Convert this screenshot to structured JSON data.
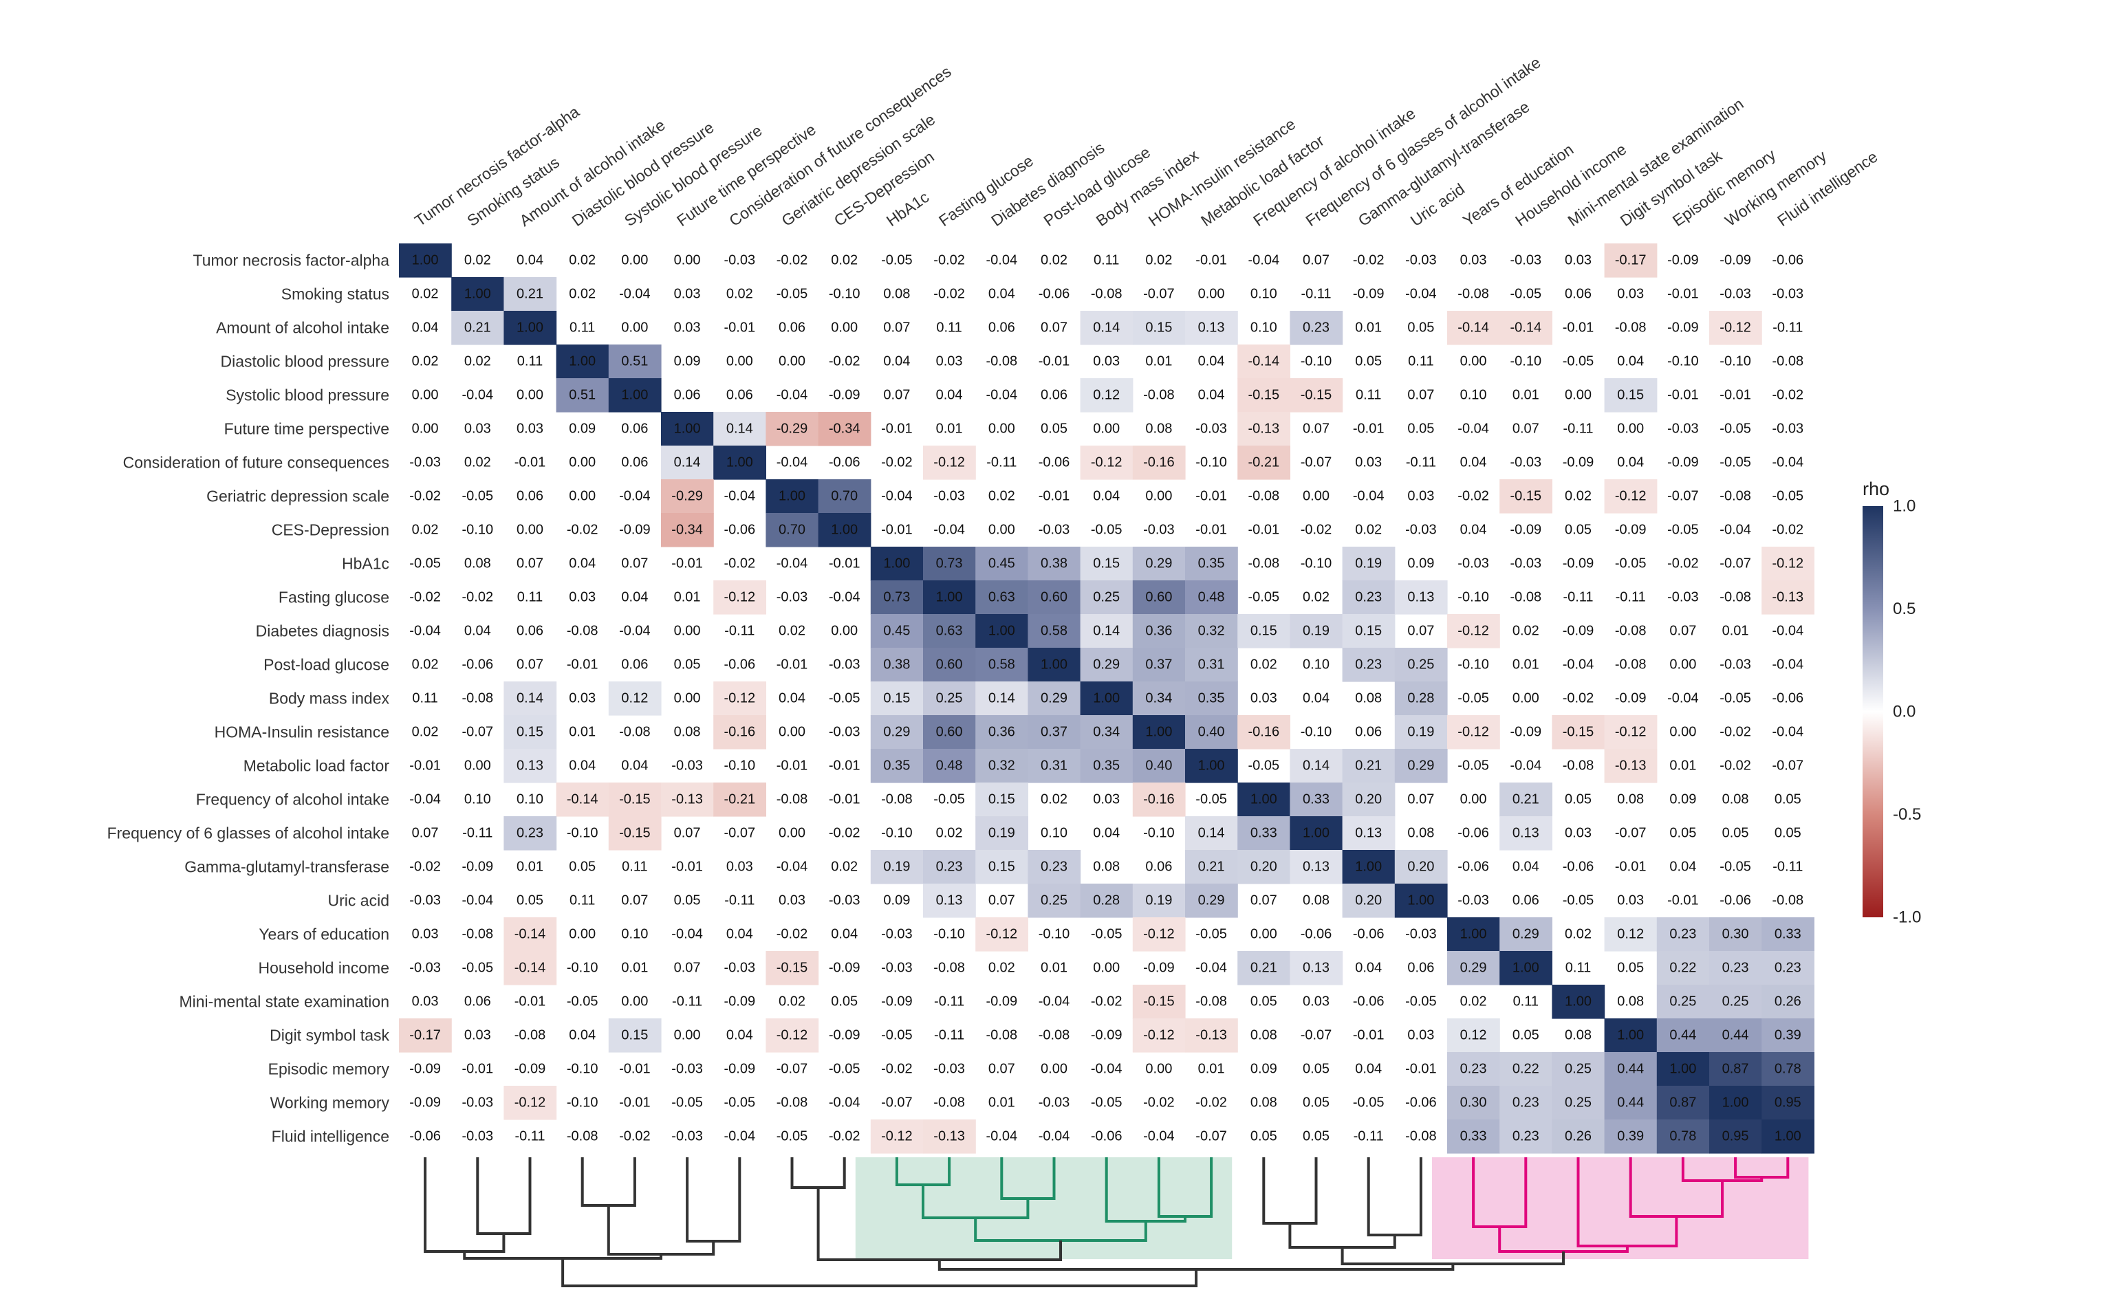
{
  "chart_data": {
    "type": "heatmap",
    "title": "",
    "variables": [
      "Tumor necrosis factor-alpha",
      "Smoking status",
      "Amount of alcohol intake",
      "Diastolic blood pressure",
      "Systolic blood pressure",
      "Future time perspective",
      "Consideration of future consequences",
      "Geriatric depression scale",
      "CES-Depression",
      "HbA1c",
      "Fasting glucose",
      "Diabetes diagnosis",
      "Post-load glucose",
      "Body mass index",
      "HOMA-Insulin resistance",
      "Metabolic load factor",
      "Frequency of alcohol intake",
      "Frequency of 6 glasses of alcohol intake",
      "Gamma-glutamyl-transferase",
      "Uric acid",
      "Years of education",
      "Household income",
      "Mini-mental state examination",
      "Digit symbol task",
      "Episodic memory",
      "Working memory",
      "Fluid intelligence"
    ],
    "matrix": [
      [
        1.0,
        0.02,
        0.04,
        0.02,
        0.0,
        0.0,
        -0.03,
        -0.02,
        0.02,
        -0.05,
        -0.02,
        -0.04,
        0.02,
        0.11,
        0.02,
        -0.01,
        -0.04,
        0.07,
        -0.02,
        -0.03,
        0.03,
        -0.03,
        0.03,
        -0.17,
        -0.09,
        -0.09,
        -0.06
      ],
      [
        0.02,
        1.0,
        0.21,
        0.02,
        -0.04,
        0.03,
        0.02,
        -0.05,
        -0.1,
        0.08,
        -0.02,
        0.04,
        -0.06,
        -0.08,
        -0.07,
        0.0,
        0.1,
        -0.11,
        -0.09,
        -0.04,
        -0.08,
        -0.05,
        0.06,
        0.03,
        -0.01,
        -0.03,
        -0.03
      ],
      [
        0.04,
        0.21,
        1.0,
        0.11,
        0.0,
        0.03,
        -0.01,
        0.06,
        0.0,
        0.07,
        0.11,
        0.06,
        0.07,
        0.14,
        0.15,
        0.13,
        0.1,
        0.23,
        0.01,
        0.05,
        -0.14,
        -0.14,
        -0.01,
        -0.08,
        -0.09,
        -0.12,
        -0.11
      ],
      [
        0.02,
        0.02,
        0.11,
        1.0,
        0.51,
        0.09,
        0.0,
        0.0,
        -0.02,
        0.04,
        0.03,
        -0.08,
        -0.01,
        0.03,
        0.01,
        0.04,
        -0.14,
        -0.1,
        0.05,
        0.11,
        0.0,
        -0.1,
        -0.05,
        0.04,
        -0.1,
        -0.1,
        -0.08
      ],
      [
        0.0,
        -0.04,
        0.0,
        0.51,
        1.0,
        0.06,
        0.06,
        -0.04,
        -0.09,
        0.07,
        0.04,
        -0.04,
        0.06,
        0.12,
        -0.08,
        0.04,
        -0.15,
        -0.15,
        0.11,
        0.07,
        0.1,
        0.01,
        0.0,
        0.15,
        -0.01,
        -0.01,
        -0.02
      ],
      [
        0.0,
        0.03,
        0.03,
        0.09,
        0.06,
        1.0,
        0.14,
        -0.29,
        -0.34,
        -0.01,
        0.01,
        0.0,
        0.05,
        0.0,
        0.08,
        -0.03,
        -0.13,
        0.07,
        -0.01,
        0.05,
        -0.04,
        0.07,
        -0.11,
        0.0,
        -0.03,
        -0.05,
        -0.03
      ],
      [
        -0.03,
        0.02,
        -0.01,
        0.0,
        0.06,
        0.14,
        1.0,
        -0.04,
        -0.06,
        -0.02,
        -0.12,
        -0.11,
        -0.06,
        -0.12,
        -0.16,
        -0.1,
        -0.21,
        -0.07,
        0.03,
        -0.11,
        0.04,
        -0.03,
        -0.09,
        0.04,
        -0.09,
        -0.05,
        -0.04
      ],
      [
        -0.02,
        -0.05,
        0.06,
        0.0,
        -0.04,
        -0.29,
        -0.04,
        1.0,
        0.7,
        -0.04,
        -0.03,
        0.02,
        -0.01,
        0.04,
        0.0,
        -0.01,
        -0.08,
        0.0,
        -0.04,
        0.03,
        -0.02,
        -0.15,
        0.02,
        -0.12,
        -0.07,
        -0.08,
        -0.05
      ],
      [
        0.02,
        -0.1,
        0.0,
        -0.02,
        -0.09,
        -0.34,
        -0.06,
        0.7,
        1.0,
        -0.01,
        -0.04,
        0.0,
        -0.03,
        -0.05,
        -0.03,
        -0.01,
        -0.01,
        -0.02,
        0.02,
        -0.03,
        0.04,
        -0.09,
        0.05,
        -0.09,
        -0.05,
        -0.04,
        -0.02
      ],
      [
        -0.05,
        0.08,
        0.07,
        0.04,
        0.07,
        -0.01,
        -0.02,
        -0.04,
        -0.01,
        1.0,
        0.73,
        0.45,
        0.38,
        0.15,
        0.29,
        0.35,
        -0.08,
        -0.1,
        0.19,
        0.09,
        -0.03,
        -0.03,
        -0.09,
        -0.05,
        -0.02,
        -0.07,
        -0.12
      ],
      [
        -0.02,
        -0.02,
        0.11,
        0.03,
        0.04,
        0.01,
        -0.12,
        -0.03,
        -0.04,
        0.73,
        1.0,
        0.63,
        0.6,
        0.25,
        0.6,
        0.48,
        -0.05,
        0.02,
        0.23,
        0.13,
        -0.1,
        -0.08,
        -0.11,
        -0.11,
        -0.03,
        -0.08,
        -0.13
      ],
      [
        -0.04,
        0.04,
        0.06,
        -0.08,
        -0.04,
        0.0,
        -0.11,
        0.02,
        0.0,
        0.45,
        0.63,
        1.0,
        0.58,
        0.14,
        0.36,
        0.32,
        0.15,
        0.19,
        0.15,
        0.07,
        -0.12,
        0.02,
        -0.09,
        -0.08,
        0.07,
        0.01,
        -0.04
      ],
      [
        0.02,
        -0.06,
        0.07,
        -0.01,
        0.06,
        0.05,
        -0.06,
        -0.01,
        -0.03,
        0.38,
        0.6,
        0.58,
        1.0,
        0.29,
        0.37,
        0.31,
        0.02,
        0.1,
        0.23,
        0.25,
        -0.1,
        0.01,
        -0.04,
        -0.08,
        0.0,
        -0.03,
        -0.04
      ],
      [
        0.11,
        -0.08,
        0.14,
        0.03,
        0.12,
        0.0,
        -0.12,
        0.04,
        -0.05,
        0.15,
        0.25,
        0.14,
        0.29,
        1.0,
        0.34,
        0.35,
        0.03,
        0.04,
        0.08,
        0.28,
        -0.05,
        0.0,
        -0.02,
        -0.09,
        -0.04,
        -0.05,
        -0.06
      ],
      [
        0.02,
        -0.07,
        0.15,
        0.01,
        -0.08,
        0.08,
        -0.16,
        0.0,
        -0.03,
        0.29,
        0.6,
        0.36,
        0.37,
        0.34,
        1.0,
        0.4,
        -0.16,
        -0.1,
        0.06,
        0.19,
        -0.12,
        -0.09,
        -0.15,
        -0.12,
        0.0,
        -0.02,
        -0.04
      ],
      [
        -0.01,
        0.0,
        0.13,
        0.04,
        0.04,
        -0.03,
        -0.1,
        -0.01,
        -0.01,
        0.35,
        0.48,
        0.32,
        0.31,
        0.35,
        0.4,
        1.0,
        -0.05,
        0.14,
        0.21,
        0.29,
        -0.05,
        -0.04,
        -0.08,
        -0.13,
        0.01,
        -0.02,
        -0.07
      ],
      [
        -0.04,
        0.1,
        0.1,
        -0.14,
        -0.15,
        -0.13,
        -0.21,
        -0.08,
        -0.01,
        -0.08,
        -0.05,
        0.15,
        0.02,
        0.03,
        -0.16,
        -0.05,
        1.0,
        0.33,
        0.2,
        0.07,
        0.0,
        0.21,
        0.05,
        0.08,
        0.09,
        0.08,
        0.05
      ],
      [
        0.07,
        -0.11,
        0.23,
        -0.1,
        -0.15,
        0.07,
        -0.07,
        0.0,
        -0.02,
        -0.1,
        0.02,
        0.19,
        0.1,
        0.04,
        -0.1,
        0.14,
        0.33,
        1.0,
        0.13,
        0.08,
        -0.06,
        0.13,
        0.03,
        -0.07,
        0.05,
        0.05,
        0.05
      ],
      [
        -0.02,
        -0.09,
        0.01,
        0.05,
        0.11,
        -0.01,
        0.03,
        -0.04,
        0.02,
        0.19,
        0.23,
        0.15,
        0.23,
        0.08,
        0.06,
        0.21,
        0.2,
        0.13,
        1.0,
        0.2,
        -0.06,
        0.04,
        -0.06,
        -0.01,
        0.04,
        -0.05,
        -0.11
      ],
      [
        -0.03,
        -0.04,
        0.05,
        0.11,
        0.07,
        0.05,
        -0.11,
        0.03,
        -0.03,
        0.09,
        0.13,
        0.07,
        0.25,
        0.28,
        0.19,
        0.29,
        0.07,
        0.08,
        0.2,
        1.0,
        -0.03,
        0.06,
        -0.05,
        0.03,
        -0.01,
        -0.06,
        -0.08
      ],
      [
        0.03,
        -0.08,
        -0.14,
        0.0,
        0.1,
        -0.04,
        0.04,
        -0.02,
        0.04,
        -0.03,
        -0.1,
        -0.12,
        -0.1,
        -0.05,
        -0.12,
        -0.05,
        0.0,
        -0.06,
        -0.06,
        -0.03,
        1.0,
        0.29,
        0.02,
        0.12,
        0.23,
        0.3,
        0.33
      ],
      [
        -0.03,
        -0.05,
        -0.14,
        -0.1,
        0.01,
        0.07,
        -0.03,
        -0.15,
        -0.09,
        -0.03,
        -0.08,
        0.02,
        0.01,
        0.0,
        -0.09,
        -0.04,
        0.21,
        0.13,
        0.04,
        0.06,
        0.29,
        1.0,
        0.11,
        0.05,
        0.22,
        0.23,
        0.23
      ],
      [
        0.03,
        0.06,
        -0.01,
        -0.05,
        0.0,
        -0.11,
        -0.09,
        0.02,
        0.05,
        -0.09,
        -0.11,
        -0.09,
        -0.04,
        -0.02,
        -0.15,
        -0.08,
        0.05,
        0.03,
        -0.06,
        -0.05,
        0.02,
        0.11,
        1.0,
        0.08,
        0.25,
        0.25,
        0.26
      ],
      [
        -0.17,
        0.03,
        -0.08,
        0.04,
        0.15,
        0.0,
        0.04,
        -0.12,
        -0.09,
        -0.05,
        -0.11,
        -0.08,
        -0.08,
        -0.09,
        -0.12,
        -0.13,
        0.08,
        -0.07,
        -0.01,
        0.03,
        0.12,
        0.05,
        0.08,
        1.0,
        0.44,
        0.44,
        0.39
      ],
      [
        -0.09,
        -0.01,
        -0.09,
        -0.1,
        -0.01,
        -0.03,
        -0.09,
        -0.07,
        -0.05,
        -0.02,
        -0.03,
        0.07,
        0.0,
        -0.04,
        0.0,
        0.01,
        0.09,
        0.05,
        0.04,
        -0.01,
        0.23,
        0.22,
        0.25,
        0.44,
        1.0,
        0.87,
        0.78
      ],
      [
        -0.09,
        -0.03,
        -0.12,
        -0.1,
        -0.01,
        -0.05,
        -0.05,
        -0.08,
        -0.04,
        -0.07,
        -0.08,
        0.01,
        -0.03,
        -0.05,
        -0.02,
        -0.02,
        0.08,
        0.05,
        -0.05,
        -0.06,
        0.3,
        0.23,
        0.25,
        0.44,
        0.87,
        1.0,
        0.95
      ],
      [
        -0.06,
        -0.03,
        -0.11,
        -0.08,
        -0.02,
        -0.03,
        -0.04,
        -0.05,
        -0.02,
        -0.12,
        -0.13,
        -0.04,
        -0.04,
        -0.06,
        -0.04,
        -0.07,
        0.05,
        0.05,
        -0.11,
        -0.08,
        0.33,
        0.23,
        0.26,
        0.39,
        0.78,
        0.95,
        1.0
      ]
    ],
    "legend": {
      "title": "rho",
      "ticks": [
        "1.0",
        "0.5",
        "0.0",
        "-0.5",
        "-1.0"
      ],
      "tick_values": [
        1.0,
        0.5,
        0.0,
        -0.5,
        -1.0
      ],
      "range": [
        -1,
        1
      ],
      "placement": "right"
    },
    "colors": {
      "high": "#1e3461",
      "mid_high": "#8891b4",
      "zero": "#ffffff",
      "mid_low": "#d6887d",
      "low": "#9b1c1c"
    },
    "clusters": [
      {
        "members": [
          9,
          10,
          11,
          12,
          13,
          14,
          15
        ],
        "color": "#1f8f66",
        "shade": "#d3e9df"
      },
      {
        "members": [
          20,
          21,
          22,
          23,
          24,
          25,
          26
        ],
        "color": "#e0077d",
        "shade": "#f7cbe4"
      }
    ]
  }
}
